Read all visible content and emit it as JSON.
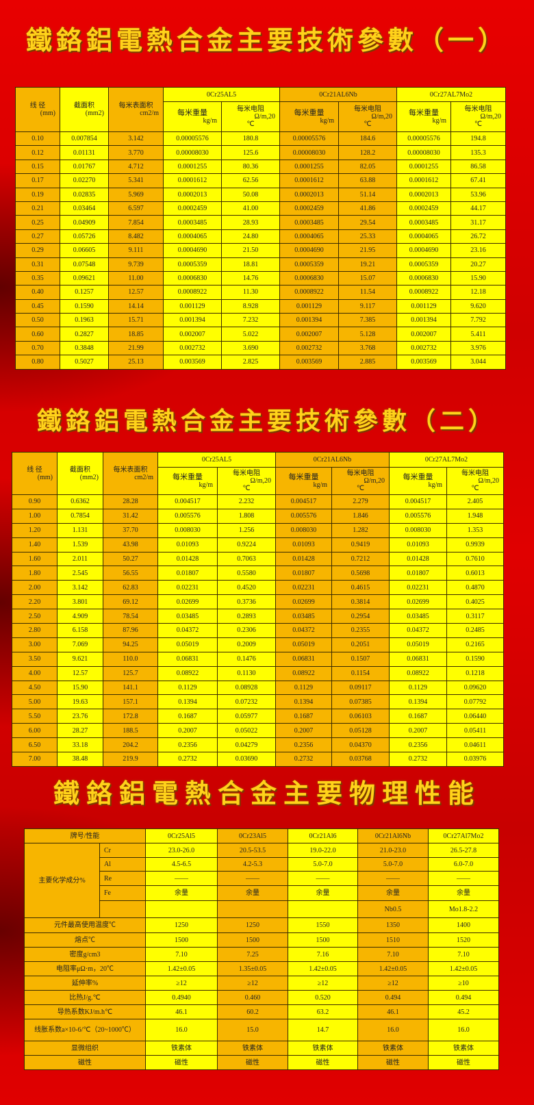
{
  "titles": [
    "鐵鉻鋁電熱合金主要技術參數（一）",
    "鐵鉻鋁電熱合金主要技術參數（二）",
    "鐵鉻鋁電熱合金主要物理性能"
  ],
  "param_header": {
    "diameter": "线 径",
    "diameter_unit": "(mm)",
    "area": "截面积",
    "area_unit": "(mm2)",
    "surface": "每米表面积",
    "surface_unit": "cm2/m",
    "alloys": [
      "0Cr25AL5",
      "0Cr21AL6Nb",
      "0Cr27AL7Mo2"
    ],
    "weight": "每米重量",
    "weight_unit": "kg/m",
    "resistance": "每米电阻",
    "resistance_unit": "Ω/m,20",
    "resistance_unit2": "℃"
  },
  "table1": [
    [
      "0.10",
      "0.007854",
      "3.142",
      "0.00005576",
      "180.8",
      "0.00005576",
      "184.6",
      "0.00005576",
      "194.8"
    ],
    [
      "0.12",
      "0.01131",
      "3.770",
      "0.00008030",
      "125.6",
      "0.00008030",
      "128.2",
      "0.00008030",
      "135.3"
    ],
    [
      "0.15",
      "0.01767",
      "4.712",
      "0.0001255",
      "80.36",
      "0.0001255",
      "82.05",
      "0.0001255",
      "86.58"
    ],
    [
      "0.17",
      "0.02270",
      "5.341",
      "0.0001612",
      "62.56",
      "0.0001612",
      "63.88",
      "0.0001612",
      "67.41"
    ],
    [
      "0.19",
      "0.02835",
      "5.969",
      "0.0002013",
      "50.08",
      "0.0002013",
      "51.14",
      "0.0002013",
      "53.96"
    ],
    [
      "0.21",
      "0.03464",
      "6.597",
      "0.0002459",
      "41.00",
      "0.0002459",
      "41.86",
      "0.0002459",
      "44.17"
    ],
    [
      "0.25",
      "0.04909",
      "7.854",
      "0.0003485",
      "28.93",
      "0.0003485",
      "29.54",
      "0.0003485",
      "31.17"
    ],
    [
      "0.27",
      "0.05726",
      "8.482",
      "0.0004065",
      "24.80",
      "0.0004065",
      "25.33",
      "0.0004065",
      "26.72"
    ],
    [
      "0.29",
      "0.06605",
      "9.111",
      "0.0004690",
      "21.50",
      "0.0004690",
      "21.95",
      "0.0004690",
      "23.16"
    ],
    [
      "0.31",
      "0.07548",
      "9.739",
      "0.0005359",
      "18.81",
      "0.0005359",
      "19.21",
      "0.0005359",
      "20.27"
    ],
    [
      "0.35",
      "0.09621",
      "11.00",
      "0.0006830",
      "14.76",
      "0.0006830",
      "15.07",
      "0.0006830",
      "15.90"
    ],
    [
      "0.40",
      "0.1257",
      "12.57",
      "0.0008922",
      "11.30",
      "0.0008922",
      "11.54",
      "0.0008922",
      "12.18"
    ],
    [
      "0.45",
      "0.1590",
      "14.14",
      "0.001129",
      "8.928",
      "0.001129",
      "9.117",
      "0.001129",
      "9.620"
    ],
    [
      "0.50",
      "0.1963",
      "15.71",
      "0.001394",
      "7.232",
      "0.001394",
      "7.385",
      "0.001394",
      "7.792"
    ],
    [
      "0.60",
      "0.2827",
      "18.85",
      "0.002007",
      "5.022",
      "0.002007",
      "5.128",
      "0.002007",
      "5.411"
    ],
    [
      "0.70",
      "0.3848",
      "21.99",
      "0.002732",
      "3.690",
      "0.002732",
      "3.768",
      "0.002732",
      "3.976"
    ],
    [
      "0.80",
      "0.5027",
      "25.13",
      "0.003569",
      "2.825",
      "0.003569",
      "2.885",
      "0.003569",
      "3.044"
    ]
  ],
  "table2": [
    [
      "0.90",
      "0.6362",
      "28.28",
      "0.004517",
      "2.232",
      "0.004517",
      "2.279",
      "0.004517",
      "2.405"
    ],
    [
      "1.00",
      "0.7854",
      "31.42",
      "0.005576",
      "1.808",
      "0.005576",
      "1.846",
      "0.005576",
      "1.948"
    ],
    [
      "1.20",
      "1.131",
      "37.70",
      "0.008030",
      "1.256",
      "0.008030",
      "1.282",
      "0.008030",
      "1.353"
    ],
    [
      "1.40",
      "1.539",
      "43.98",
      "0.01093",
      "0.9224",
      "0.01093",
      "0.9419",
      "0.01093",
      "0.9939"
    ],
    [
      "1.60",
      "2.011",
      "50.27",
      "0.01428",
      "0.7063",
      "0.01428",
      "0.7212",
      "0.01428",
      "0.7610"
    ],
    [
      "1.80",
      "2.545",
      "56.55",
      "0.01807",
      "0.5580",
      "0.01807",
      "0.5698",
      "0.01807",
      "0.6013"
    ],
    [
      "2.00",
      "3.142",
      "62.83",
      "0.02231",
      "0.4520",
      "0.02231",
      "0.4615",
      "0.02231",
      "0.4870"
    ],
    [
      "2.20",
      "3.801",
      "69.12",
      "0.02699",
      "0.3736",
      "0.02699",
      "0.3814",
      "0.02699",
      "0.4025"
    ],
    [
      "2.50",
      "4.909",
      "78.54",
      "0.03485",
      "0.2893",
      "0.03485",
      "0.2954",
      "0.03485",
      "0.3117"
    ],
    [
      "2.80",
      "6.158",
      "87.96",
      "0.04372",
      "0.2306",
      "0.04372",
      "0.2355",
      "0.04372",
      "0.2485"
    ],
    [
      "3.00",
      "7.069",
      "94.25",
      "0.05019",
      "0.2009",
      "0.05019",
      "0.2051",
      "0.05019",
      "0.2165"
    ],
    [
      "3.50",
      "9.621",
      "110.0",
      "0.06831",
      "0.1476",
      "0.06831",
      "0.1507",
      "0.06831",
      "0.1590"
    ],
    [
      "4.00",
      "12.57",
      "125.7",
      "0.08922",
      "0.1130",
      "0.08922",
      "0.1154",
      "0.08922",
      "0.1218"
    ],
    [
      "4.50",
      "15.90",
      "141.1",
      "0.1129",
      "0.08928",
      "0.1129",
      "0.09117",
      "0.1129",
      "0.09620"
    ],
    [
      "5.00",
      "19.63",
      "157.1",
      "0.1394",
      "0.07232",
      "0.1394",
      "0.07385",
      "0.1394",
      "0.07792"
    ],
    [
      "5.50",
      "23.76",
      "172.8",
      "0.1687",
      "0.05977",
      "0.1687",
      "0.06103",
      "0.1687",
      "0.06440"
    ],
    [
      "6.00",
      "28.27",
      "188.5",
      "0.2007",
      "0.05022",
      "0.2007",
      "0.05128",
      "0.2007",
      "0.05411"
    ],
    [
      "6.50",
      "33.18",
      "204.2",
      "0.2356",
      "0.04279",
      "0.2356",
      "0.04370",
      "0.2356",
      "0.04611"
    ],
    [
      "7.00",
      "38.48",
      "219.9",
      "0.2732",
      "0.03690",
      "0.2732",
      "0.03768",
      "0.2732",
      "0.03976"
    ]
  ],
  "physical": {
    "header": [
      "牌号/性能",
      "0Cr25Al5",
      "0Cr23Al5",
      "0Cr21Al6",
      "0Cr21Al6Nb",
      "0Cr27Al7Mo2"
    ],
    "composition_label": "主要化学成分%",
    "composition": [
      [
        "Cr",
        "23.0-26.0",
        "20.5-53.5",
        "19.0-22.0",
        "21.0-23.0",
        "26.5-27.8"
      ],
      [
        "Al",
        "4.5-6.5",
        "4.2-5.3",
        "5.0-7.0",
        "5.0-7.0",
        "6.0-7.0"
      ],
      [
        "Re",
        "——",
        "——",
        "——",
        "——",
        "——"
      ],
      [
        "Fe",
        "余量",
        "余量",
        "余量",
        "余量",
        "余量"
      ],
      [
        "",
        "",
        "",
        "",
        "Nb0.5",
        "Mo1.8-2.2"
      ]
    ],
    "rows": [
      [
        "元件最高使用温度℃",
        "1250",
        "1250",
        "1550",
        "1350",
        "1400"
      ],
      [
        "熔点℃",
        "1500",
        "1500",
        "1500",
        "1510",
        "1520"
      ],
      [
        "密度g/cm3",
        "7.10",
        "7.25",
        "7.16",
        "7.10",
        "7.10"
      ],
      [
        "电阻率μΩ·m，20℃",
        "1.42±0.05",
        "1.35±0.05",
        "1.42±0.05",
        "1.42±0.05",
        "1.42±0.05"
      ],
      [
        "延伸率%",
        "≥12",
        "≥12",
        "≥12",
        "≥12",
        "≥10"
      ],
      [
        "比热J/g.℃",
        "0.4940",
        "0.460",
        "0.520",
        "0.494",
        "0.494"
      ],
      [
        "导热系数KJ/m.h℃",
        "46.1",
        "60.2",
        "63.2",
        "46.1",
        "45.2"
      ],
      [
        "线胀系数a×10-6/℃（20~1000℃）",
        "16.0",
        "15.0",
        "14.7",
        "16.0",
        "16.0"
      ],
      [
        "显微组织",
        "铁素体",
        "铁素体",
        "铁素体",
        "铁素体",
        "铁素体"
      ],
      [
        "磁性",
        "磁性",
        "磁性",
        "磁性",
        "磁性",
        "磁性"
      ]
    ]
  },
  "colors": {
    "orange_cell": "#f7b500",
    "yellow_cell": "#ffff00",
    "background": "#e00000",
    "title": "#ffd21a"
  }
}
